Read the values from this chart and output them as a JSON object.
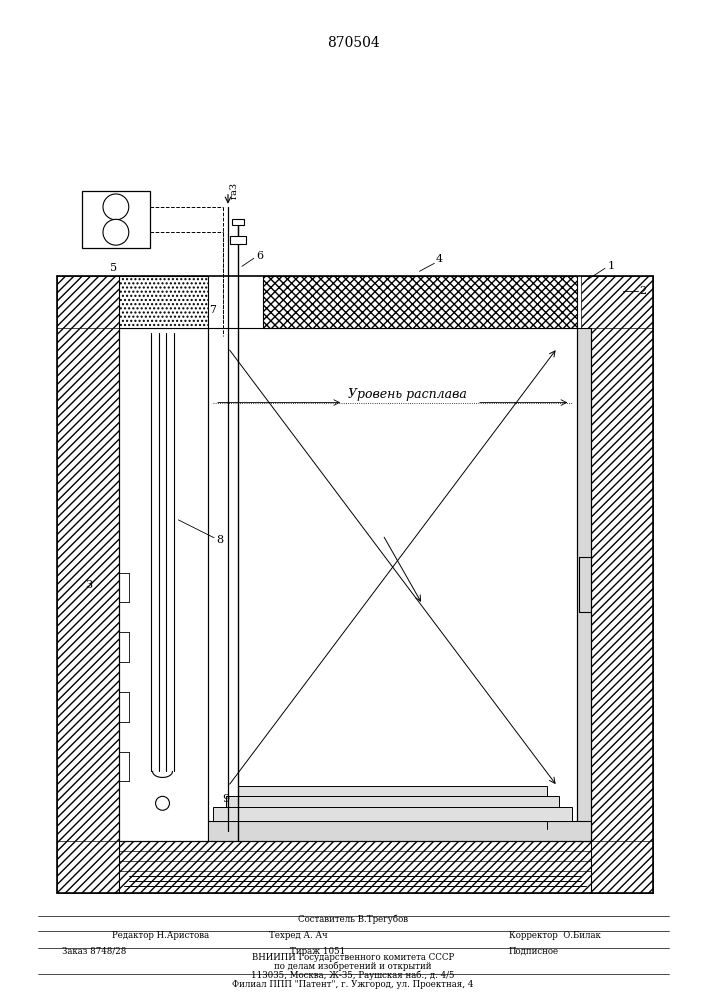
{
  "patent_number": "870504",
  "bg": "#ffffff",
  "black": "#000000",
  "gray": "#aaaaaa",
  "lgray": "#dddddd",
  "footer": {
    "sestavitel": "Составитель В.Трегубов",
    "redaktor_label": "Редактор Н.Аристова",
    "tehred_label": "Техред А. Ач",
    "korrektor_label": "Корректор  О.Билак",
    "zakaz": "Заказ 8748/28",
    "tirazh": "Тираж 1051",
    "podpisnoe": "Подписное",
    "vniipи": "ВНИИПИ Государственного комитета СССР",
    "po_delam": "по делам изобретений и открытий",
    "address": "113035, Москва, Ж-35, Раушская наб., д. 4/5",
    "filial": "Филиал ППП \"Патент\", г. Ужгород, ул. Проектная, 4"
  },
  "level_text": "Уровень расплава",
  "gaz_text": "гаЗ"
}
